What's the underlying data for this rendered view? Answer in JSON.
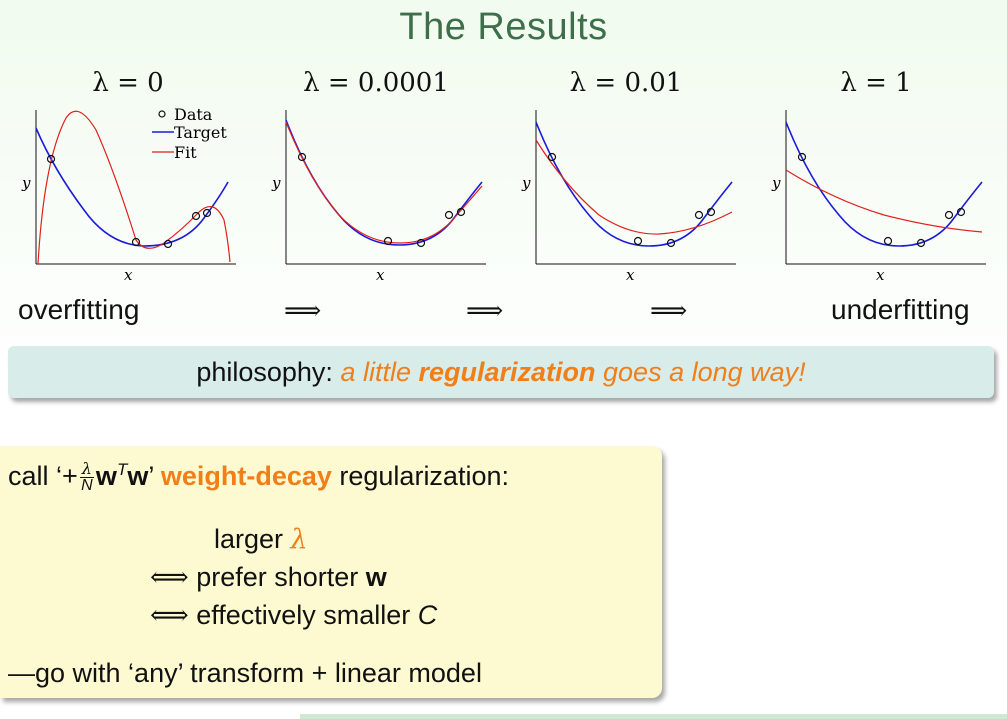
{
  "title": "The Results",
  "plots": [
    {
      "lambda_label": "λ = 0",
      "y_label": "y",
      "x_label": "x",
      "legend": [
        "Data",
        "Target",
        "Fit"
      ]
    },
    {
      "lambda_label": "λ = 0.0001",
      "y_label": "y",
      "x_label": "x"
    },
    {
      "lambda_label": "λ = 0.01",
      "y_label": "y",
      "x_label": "x"
    },
    {
      "lambda_label": "λ = 1",
      "y_label": "y",
      "x_label": "x"
    }
  ],
  "colors": {
    "target": "#1c1cd8",
    "fit": "#e0201e",
    "accent": "#f07f1a",
    "title": "#3f6f4a"
  },
  "progression": {
    "left": "overfitting",
    "arrow": "⟹",
    "right": "underfitting"
  },
  "philosophy": {
    "prefix": "philosophy: ",
    "part1": "a little ",
    "bold": "regularization",
    "part2": " goes a long way!"
  },
  "box": {
    "line1_pre": "call ‘+",
    "frac_num": "λ",
    "frac_den": "N",
    "w_bold": "w",
    "sup": "T",
    "w_bold2": "w",
    "line1_post_quote": "’ ",
    "weight_decay": "weight-decay",
    "line1_end": " regularization:",
    "line2_pre": "larger ",
    "line2_lambda": "λ",
    "iff": "⟺",
    "line3": " prefer shorter ",
    "line3_w": "w",
    "line4": " effectively smaller ",
    "line4_c": "C",
    "line5": "—go with ‘any’ transform + linear model"
  }
}
